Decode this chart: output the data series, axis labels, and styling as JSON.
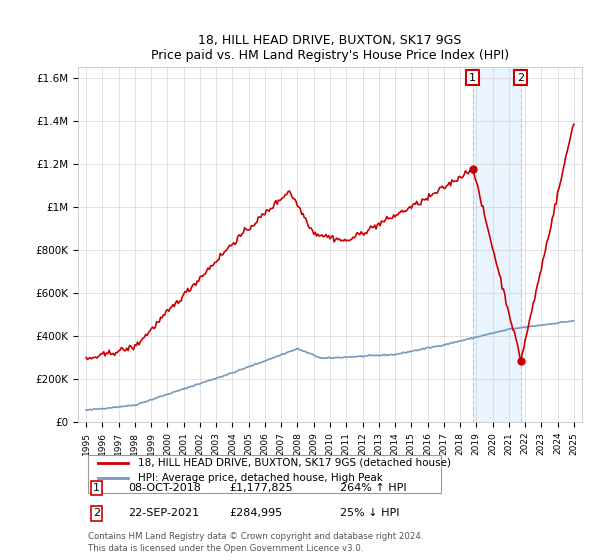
{
  "title": "18, HILL HEAD DRIVE, BUXTON, SK17 9GS",
  "subtitle": "Price paid vs. HM Land Registry's House Price Index (HPI)",
  "ylabel_ticks": [
    "£0",
    "£200K",
    "£400K",
    "£600K",
    "£800K",
    "£1M",
    "£1.2M",
    "£1.4M",
    "£1.6M"
  ],
  "ytick_vals": [
    0,
    200000,
    400000,
    600000,
    800000,
    1000000,
    1200000,
    1400000,
    1600000
  ],
  "ylim": [
    0,
    1650000
  ],
  "xlim_start": 1994.5,
  "xlim_end": 2025.5,
  "legend_line1": "18, HILL HEAD DRIVE, BUXTON, SK17 9GS (detached house)",
  "legend_line2": "HPI: Average price, detached house, High Peak",
  "red_color": "#cc0000",
  "blue_color": "#7799bb",
  "marker1_year": 2018.78,
  "marker2_year": 2021.73,
  "marker1_price": 1177825,
  "marker2_price": 284995,
  "annotation1_num": "1",
  "annotation1_date": "08-OCT-2018",
  "annotation1_price": "£1,177,825",
  "annotation1_hpi": "264% ↑ HPI",
  "annotation2_num": "2",
  "annotation2_date": "22-SEP-2021",
  "annotation2_price": "£284,995",
  "annotation2_hpi": "25% ↓ HPI",
  "footer": "Contains HM Land Registry data © Crown copyright and database right 2024.\nThis data is licensed under the Open Government Licence v3.0.",
  "grid_color": "#cccccc",
  "shaded_region_color": "#ddeeff",
  "shaded_alpha": 0.6
}
